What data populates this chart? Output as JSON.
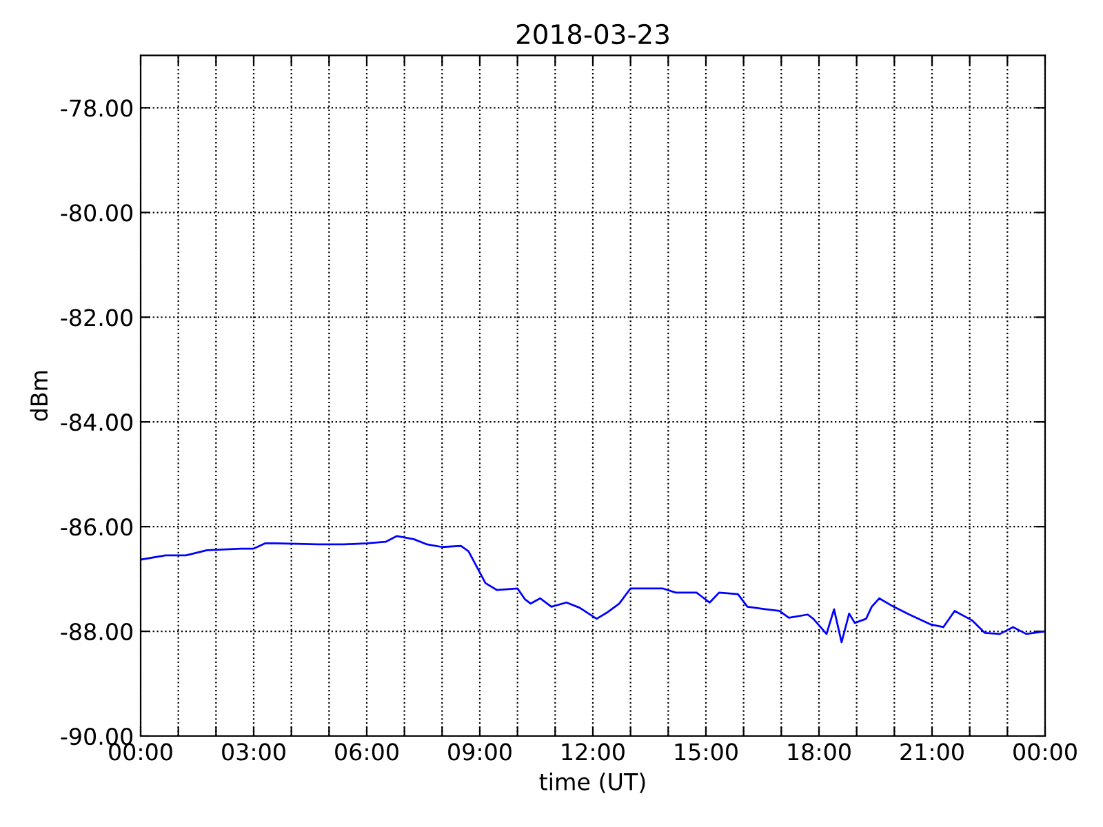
{
  "chart_data": {
    "type": "line",
    "title": "2018-03-23",
    "xlabel": "time (UT)",
    "ylabel": "dBm",
    "x": [
      0,
      0.66,
      1.2,
      1.76,
      2.67,
      3.0,
      3.3,
      3.6,
      4.7,
      5.4,
      6.0,
      6.5,
      6.8,
      7.25,
      7.6,
      8.0,
      8.5,
      8.7,
      8.9,
      9.15,
      9.45,
      10.0,
      10.2,
      10.35,
      10.6,
      10.9,
      11.3,
      11.65,
      12.1,
      12.4,
      12.7,
      13.0,
      13.5,
      13.85,
      14.2,
      14.75,
      15.1,
      15.35,
      15.85,
      16.1,
      16.6,
      16.95,
      17.2,
      17.7,
      17.85,
      18.2,
      18.4,
      18.6,
      18.8,
      18.95,
      19.25,
      19.4,
      19.6,
      19.98,
      20.4,
      20.97,
      21.3,
      21.6,
      22.06,
      22.4,
      22.8,
      23.15,
      23.5,
      24
    ],
    "series": [
      {
        "color": "#0000ff",
        "values": [
          -86.63,
          -86.55,
          -86.55,
          -86.45,
          -86.42,
          -86.42,
          -86.32,
          -86.32,
          -86.34,
          -86.34,
          -86.32,
          -86.29,
          -86.18,
          -86.24,
          -86.34,
          -86.39,
          -86.37,
          -86.47,
          -86.74,
          -87.08,
          -87.21,
          -87.18,
          -87.39,
          -87.47,
          -87.37,
          -87.53,
          -87.45,
          -87.55,
          -87.76,
          -87.63,
          -87.47,
          -87.18,
          -87.18,
          -87.18,
          -87.26,
          -87.26,
          -87.45,
          -87.26,
          -87.29,
          -87.53,
          -87.58,
          -87.61,
          -87.74,
          -87.68,
          -87.76,
          -88.05,
          -87.58,
          -88.21,
          -87.66,
          -87.84,
          -87.76,
          -87.53,
          -87.37,
          -87.53,
          -87.68,
          -87.87,
          -87.92,
          -87.61,
          -87.79,
          -88.03,
          -88.05,
          -87.92,
          -88.05,
          -88.0
        ]
      }
    ],
    "xlim": [
      0,
      24
    ],
    "xticks": [
      {
        "value": 0,
        "label": "00:00"
      },
      {
        "value": 1,
        "label": null
      },
      {
        "value": 2,
        "label": null
      },
      {
        "value": 3,
        "label": "03:00"
      },
      {
        "value": 4,
        "label": null
      },
      {
        "value": 5,
        "label": null
      },
      {
        "value": 6,
        "label": "06:00"
      },
      {
        "value": 7,
        "label": null
      },
      {
        "value": 8,
        "label": null
      },
      {
        "value": 9,
        "label": "09:00"
      },
      {
        "value": 10,
        "label": null
      },
      {
        "value": 11,
        "label": null
      },
      {
        "value": 12,
        "label": "12:00"
      },
      {
        "value": 13,
        "label": null
      },
      {
        "value": 14,
        "label": null
      },
      {
        "value": 15,
        "label": "15:00"
      },
      {
        "value": 16,
        "label": null
      },
      {
        "value": 17,
        "label": null
      },
      {
        "value": 18,
        "label": "18:00"
      },
      {
        "value": 19,
        "label": null
      },
      {
        "value": 20,
        "label": null
      },
      {
        "value": 21,
        "label": "21:00"
      },
      {
        "value": 22,
        "label": null
      },
      {
        "value": 23,
        "label": null
      },
      {
        "value": 24,
        "label": "00:00"
      }
    ],
    "ylim": [
      -90,
      -77
    ],
    "yticks": [
      {
        "value": -90,
        "label": "-90.00"
      },
      {
        "value": -88,
        "label": "-88.00"
      },
      {
        "value": -86,
        "label": "-86.00"
      },
      {
        "value": -84,
        "label": "-84.00"
      },
      {
        "value": -82,
        "label": "-82.00"
      },
      {
        "value": -80,
        "label": "-80.00"
      },
      {
        "value": -78,
        "label": "-78.00"
      }
    ],
    "grid": true,
    "legend": false,
    "marker": "none",
    "line_style": "solid"
  }
}
